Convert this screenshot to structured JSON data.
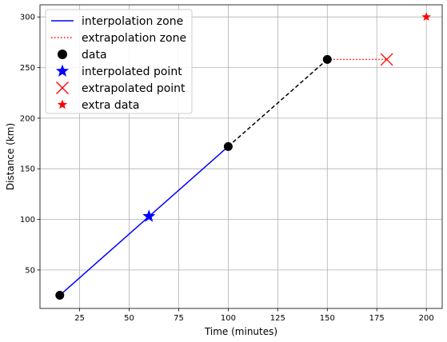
{
  "chart_data": {
    "type": "line",
    "xlabel": "Time (minutes)",
    "ylabel": "Distance (km)",
    "xlim": [
      5,
      208
    ],
    "ylim": [
      12,
      312
    ],
    "x_ticks": [
      25,
      50,
      75,
      100,
      125,
      150,
      175,
      200
    ],
    "y_ticks": [
      50,
      100,
      150,
      200,
      250,
      300
    ],
    "grid": true,
    "legend_position": "top-left",
    "series": [
      {
        "name": "interpolation zone",
        "kind": "line",
        "style": "solid",
        "color": "#0000ff",
        "x": [
          15,
          100
        ],
        "y": [
          25,
          172
        ]
      },
      {
        "name": "",
        "kind": "line",
        "style": "dashed",
        "color": "#000000",
        "x": [
          100,
          150
        ],
        "y": [
          172,
          258
        ]
      },
      {
        "name": "extrapolation zone",
        "kind": "line",
        "style": "dotted",
        "color": "#ff0000",
        "x": [
          150,
          180
        ],
        "y": [
          258,
          258
        ]
      },
      {
        "name": "data",
        "kind": "scatter",
        "marker": "circle",
        "color": "#000000",
        "x": [
          15,
          100,
          150
        ],
        "y": [
          25,
          172,
          258
        ]
      },
      {
        "name": "interpolated point",
        "kind": "scatter",
        "marker": "star",
        "color": "#0000ff",
        "x": [
          60
        ],
        "y": [
          103
        ]
      },
      {
        "name": "extrapolated point",
        "kind": "scatter",
        "marker": "x",
        "color": "#ff0000",
        "x": [
          180
        ],
        "y": [
          258
        ]
      },
      {
        "name": "extra data",
        "kind": "scatter",
        "marker": "star",
        "color": "#ff0000",
        "x": [
          200
        ],
        "y": [
          300
        ]
      }
    ],
    "legend": [
      {
        "label": "interpolation zone",
        "sample": "solid-line",
        "color": "#0000ff"
      },
      {
        "label": "extrapolation zone",
        "sample": "dotted-line",
        "color": "#ff0000"
      },
      {
        "label": "data",
        "sample": "circle",
        "color": "#000000"
      },
      {
        "label": "interpolated point",
        "sample": "star",
        "color": "#0000ff"
      },
      {
        "label": "extrapolated point",
        "sample": "x",
        "color": "#ff0000"
      },
      {
        "label": "extra data",
        "sample": "star",
        "color": "#ff0000"
      }
    ]
  }
}
